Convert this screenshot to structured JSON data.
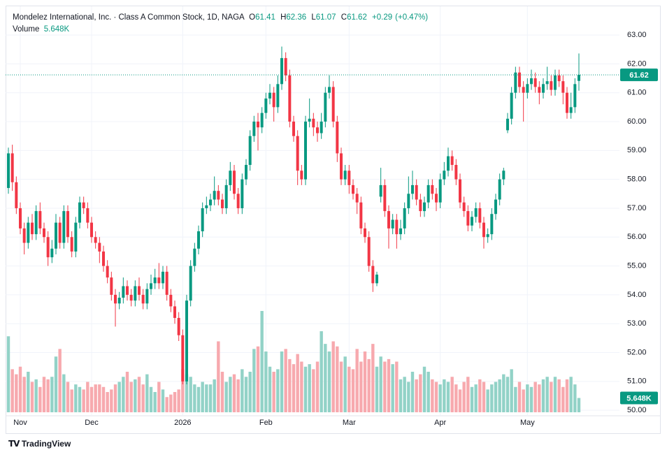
{
  "header": {
    "title": "Mondelez International, Inc. · Class A Common Stock, 1D, NAGA",
    "ohlc_labels": [
      "O",
      "H",
      "L",
      "C"
    ],
    "change": "+0.29",
    "change_pct": "(+0.47%)"
  },
  "footer": {
    "brand": "TradingView"
  },
  "chart_data": {
    "type": "candlestick",
    "grid": true,
    "up_color": "#089981",
    "down_color": "#f23645",
    "volume_up_color": "#92d2c7",
    "volume_down_color": "#f7a9ae",
    "volume_name": "Volume",
    "volume_label": "5.648K",
    "ylim": [
      49.81,
      63.97
    ],
    "yticks": [
      {
        "value": 50,
        "label": "50.00"
      },
      {
        "value": 51,
        "label": "51.00"
      },
      {
        "value": 52,
        "label": "52.00"
      },
      {
        "value": 53,
        "label": "53.00"
      },
      {
        "value": 54,
        "label": "54.00"
      },
      {
        "value": 55,
        "label": "55.00"
      },
      {
        "value": 56,
        "label": "56.00"
      },
      {
        "value": 57,
        "label": "57.00"
      },
      {
        "value": 58,
        "label": "58.00"
      },
      {
        "value": 59,
        "label": "59.00"
      },
      {
        "value": 60,
        "label": "60.00"
      },
      {
        "value": 61,
        "label": "61.00"
      },
      {
        "value": 62,
        "label": "62.00"
      },
      {
        "value": 63,
        "label": "63.00"
      }
    ],
    "categories": [
      null,
      null,
      null,
      "Nov",
      null,
      null,
      null,
      null,
      null,
      null,
      null,
      null,
      null,
      null,
      null,
      null,
      null,
      null,
      null,
      null,
      null,
      "Dec",
      null,
      null,
      null,
      null,
      null,
      null,
      null,
      null,
      null,
      null,
      null,
      null,
      null,
      null,
      null,
      null,
      null,
      null,
      null,
      null,
      null,
      null,
      "2026",
      null,
      null,
      null,
      null,
      null,
      null,
      null,
      null,
      null,
      null,
      null,
      null,
      null,
      null,
      null,
      null,
      null,
      null,
      null,
      null,
      "Feb",
      null,
      null,
      null,
      null,
      null,
      null,
      null,
      null,
      null,
      null,
      null,
      null,
      null,
      null,
      null,
      null,
      null,
      null,
      null,
      null,
      "Mar",
      null,
      null,
      null,
      null,
      null,
      null,
      null,
      null,
      null,
      null,
      null,
      null,
      null,
      null,
      null,
      null,
      null,
      null,
      null,
      null,
      null,
      null,
      "Apr",
      null,
      null,
      null,
      null,
      null,
      null,
      null,
      null,
      null,
      null,
      null,
      null,
      null,
      null,
      null,
      null,
      null,
      null,
      null,
      null,
      null,
      "May",
      null,
      null,
      null,
      null,
      null,
      null,
      null,
      null,
      null,
      null,
      null,
      null,
      null
    ],
    "open": [
      57.7,
      58.9,
      57.9,
      57.0,
      56.3,
      55.8,
      56.5,
      56.1,
      56.9,
      56.3,
      56.0,
      55.3,
      55.6,
      56.5,
      55.8,
      56.9,
      56.0,
      55.5,
      56.5,
      57.2,
      57.0,
      56.5,
      56.0,
      55.8,
      55.5,
      55.0,
      54.6,
      54.0,
      53.7,
      53.9,
      54.3,
      54.0,
      53.8,
      54.3,
      54.0,
      53.7,
      54.2,
      54.4,
      54.6,
      54.4,
      54.8,
      54.0,
      53.6,
      53.2,
      52.6,
      51.0,
      53.8,
      55.0,
      55.6,
      56.2,
      57.0,
      57.1,
      57.3,
      57.6,
      57.3,
      57.0,
      57.8,
      58.3,
      57.5,
      57.0,
      58.0,
      58.5,
      59.5,
      60.0,
      59.8,
      60.3,
      60.8,
      61.0,
      60.5,
      61.3,
      62.2,
      61.6,
      60.0,
      59.5,
      58.3,
      58.0,
      60.0,
      60.1,
      59.8,
      59.6,
      60.0,
      61.0,
      61.2,
      60.0,
      58.9,
      58.0,
      58.3,
      57.8,
      57.5,
      57.2,
      56.3,
      56.0,
      55.0,
      54.4,
      57.4,
      57.8,
      56.9,
      56.3,
      56.6,
      56.1,
      56.3,
      57.0,
      57.5,
      57.8,
      57.3,
      56.9,
      57.2,
      57.8,
      57.5,
      57.2,
      58.0,
      58.3,
      58.8,
      58.5,
      58.0,
      57.2,
      56.9,
      56.4,
      56.7,
      57.0,
      56.5,
      56.0,
      56.1,
      56.8,
      57.3,
      58.0,
      59.7,
      60.1,
      61.0,
      61.7,
      61.2,
      61.0,
      61.3,
      61.5,
      61.2,
      61.0,
      61.3,
      61.4,
      61.1,
      61.6,
      61.4,
      61.0,
      60.3,
      60.5,
      61.41
    ],
    "high": [
      59.1,
      59.2,
      58.1,
      57.2,
      56.5,
      56.7,
      56.8,
      57.1,
      57.2,
      56.5,
      56.2,
      55.9,
      56.8,
      56.7,
      57.1,
      57.1,
      56.2,
      56.7,
      57.4,
      57.4,
      57.2,
      56.7,
      56.2,
      56.0,
      55.7,
      55.2,
      54.8,
      54.2,
      54.1,
      54.6,
      54.5,
      54.2,
      54.5,
      54.6,
      54.2,
      54.4,
      54.7,
      54.9,
      55.1,
      55.0,
      55.0,
      54.2,
      53.8,
      53.4,
      52.8,
      54.0,
      55.2,
      55.8,
      56.4,
      57.2,
      57.4,
      57.5,
      58.1,
      57.8,
      57.5,
      58.0,
      58.6,
      58.5,
      57.7,
      58.2,
      58.7,
      59.7,
      60.2,
      60.3,
      60.5,
      61.0,
      61.3,
      61.2,
      61.6,
      62.6,
      62.4,
      61.8,
      60.2,
      59.7,
      58.5,
      60.2,
      60.8,
      60.3,
      60.0,
      60.3,
      61.2,
      61.6,
      61.4,
      60.2,
      59.1,
      58.5,
      58.5,
      58.0,
      57.7,
      57.4,
      56.5,
      56.2,
      55.2,
      54.8,
      58.4,
      58.0,
      57.1,
      56.8,
      56.8,
      56.6,
      57.2,
      58.1,
      58.3,
      58.0,
      57.5,
      57.4,
      58.0,
      58.0,
      57.7,
      58.2,
      58.6,
      59.1,
      59.0,
      58.7,
      58.2,
      57.4,
      57.1,
      56.9,
      57.2,
      57.2,
      56.7,
      56.3,
      57.0,
      57.5,
      58.2,
      58.4,
      60.3,
      61.2,
      61.9,
      61.9,
      61.4,
      61.5,
      61.8,
      61.7,
      61.4,
      61.5,
      61.9,
      61.6,
      61.8,
      61.8,
      61.6,
      61.2,
      61.0,
      61.5,
      62.36
    ],
    "low": [
      57.5,
      57.6,
      56.8,
      56.1,
      55.4,
      55.6,
      55.9,
      55.9,
      56.1,
      55.8,
      55.0,
      55.1,
      55.4,
      55.6,
      55.6,
      55.8,
      55.3,
      55.3,
      56.3,
      56.8,
      56.3,
      55.8,
      55.6,
      55.1,
      54.8,
      54.4,
      53.8,
      52.9,
      53.5,
      53.7,
      53.8,
      53.6,
      53.6,
      53.8,
      53.5,
      53.5,
      54.0,
      54.2,
      54.2,
      54.2,
      53.8,
      53.4,
      53.0,
      52.4,
      50.9,
      50.9,
      53.6,
      54.8,
      55.4,
      56.0,
      56.8,
      56.9,
      57.1,
      57.1,
      56.8,
      56.8,
      57.6,
      57.3,
      56.8,
      56.8,
      57.8,
      58.3,
      59.3,
      59.0,
      59.6,
      60.1,
      60.6,
      60.0,
      60.3,
      61.1,
      61.4,
      59.8,
      59.3,
      57.8,
      57.8,
      57.8,
      59.8,
      59.5,
      59.3,
      59.4,
      59.8,
      60.8,
      59.8,
      58.6,
      57.8,
      57.8,
      57.5,
      57.3,
      56.8,
      56.1,
      55.8,
      54.8,
      54.1,
      54.3,
      57.2,
      56.7,
      55.6,
      56.1,
      55.6,
      55.9,
      56.1,
      56.8,
      57.3,
      57.1,
      56.7,
      56.7,
      57.0,
      57.3,
      56.9,
      57.0,
      57.8,
      58.1,
      58.3,
      57.8,
      57.0,
      56.7,
      56.2,
      56.2,
      56.5,
      56.3,
      55.6,
      55.8,
      55.9,
      56.6,
      57.1,
      57.8,
      59.6,
      59.9,
      60.8,
      61.0,
      60.0,
      60.8,
      61.1,
      61.0,
      60.6,
      60.8,
      61.1,
      60.9,
      60.9,
      61.2,
      60.6,
      60.1,
      60.1,
      60.3,
      61.07
    ],
    "close": [
      58.9,
      57.9,
      57.0,
      56.3,
      55.8,
      56.5,
      56.1,
      56.9,
      56.3,
      56.0,
      55.3,
      55.6,
      56.5,
      55.8,
      56.9,
      56.0,
      55.5,
      56.5,
      57.2,
      57.0,
      56.5,
      56.0,
      55.8,
      55.5,
      55.0,
      54.6,
      54.0,
      53.7,
      53.9,
      54.3,
      54.0,
      53.8,
      54.3,
      54.0,
      53.7,
      54.2,
      54.4,
      54.6,
      54.4,
      54.8,
      54.0,
      53.6,
      53.2,
      52.6,
      51.0,
      53.8,
      55.0,
      55.6,
      56.2,
      57.0,
      57.1,
      57.3,
      57.6,
      57.3,
      57.0,
      57.8,
      58.3,
      57.5,
      57.0,
      58.0,
      58.5,
      59.5,
      60.0,
      59.8,
      60.3,
      60.8,
      61.0,
      60.5,
      61.3,
      62.2,
      61.6,
      60.0,
      59.5,
      58.3,
      58.0,
      60.0,
      60.1,
      59.8,
      59.6,
      60.0,
      61.0,
      61.2,
      60.0,
      58.9,
      58.0,
      58.3,
      57.8,
      57.5,
      57.2,
      56.3,
      56.0,
      55.0,
      54.4,
      54.7,
      57.8,
      56.9,
      56.3,
      56.6,
      56.1,
      56.3,
      57.0,
      57.5,
      57.8,
      57.3,
      56.9,
      57.2,
      57.8,
      57.5,
      57.2,
      58.0,
      58.3,
      58.8,
      58.5,
      58.0,
      57.2,
      56.9,
      56.4,
      56.7,
      57.0,
      56.5,
      56.0,
      56.1,
      56.8,
      57.3,
      58.0,
      58.3,
      60.1,
      61.0,
      61.7,
      61.2,
      61.0,
      61.3,
      61.5,
      61.2,
      61.0,
      61.3,
      61.4,
      61.1,
      61.6,
      61.4,
      61.0,
      60.3,
      60.5,
      61.3,
      61.62
    ],
    "volume": [
      30000,
      17000,
      15000,
      18000,
      14000,
      16000,
      12000,
      13000,
      10000,
      14000,
      13000,
      14000,
      22000,
      25000,
      15000,
      12000,
      9000,
      11000,
      10000,
      9000,
      12000,
      10000,
      11000,
      11000,
      10000,
      8000,
      9000,
      11000,
      12000,
      14000,
      16000,
      12000,
      13000,
      14000,
      11000,
      15000,
      10000,
      8000,
      12000,
      9000,
      6000,
      7000,
      8000,
      9000,
      17000,
      15000,
      14000,
      11000,
      10000,
      12000,
      11000,
      11000,
      13000,
      28000,
      16000,
      12000,
      14000,
      15000,
      13000,
      17000,
      14000,
      16000,
      25000,
      26000,
      40000,
      24000,
      18000,
      16000,
      17000,
      24000,
      25000,
      21000,
      19000,
      23000,
      20000,
      18000,
      19000,
      17000,
      20000,
      32000,
      27000,
      24000,
      28000,
      26000,
      20000,
      22000,
      18000,
      17000,
      25000,
      20000,
      24000,
      21000,
      27000,
      18000,
      22000,
      20000,
      21000,
      19000,
      20000,
      13000,
      14000,
      12000,
      16000,
      13000,
      15000,
      18000,
      16000,
      13000,
      12000,
      11000,
      13000,
      12000,
      14000,
      11000,
      9000,
      12000,
      14000,
      10000,
      11000,
      13000,
      12000,
      9000,
      11000,
      12000,
      13000,
      15000,
      14000,
      17000,
      10000,
      12000,
      9000,
      11000,
      10000,
      12000,
      11000,
      13000,
      14000,
      12000,
      14000,
      13000,
      10000,
      13000,
      14000,
      11000,
      5648
    ]
  }
}
